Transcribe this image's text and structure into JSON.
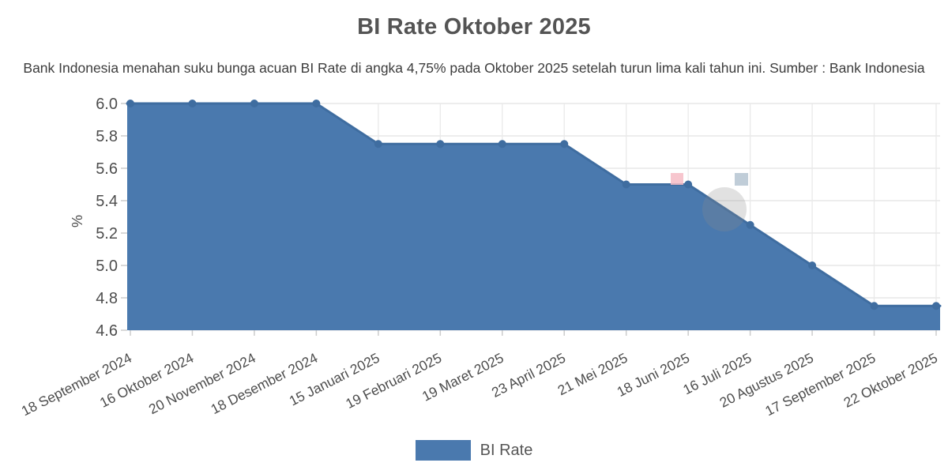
{
  "header": {
    "title": "BI Rate Oktober 2025",
    "subtitle": "Bank Indonesia menahan suku bunga acuan BI Rate di angka 4,75% pada Oktober 2025 setelah turun lima kali tahun ini. Sumber : Bank Indonesia"
  },
  "legend": {
    "label": "BI Rate"
  },
  "chart_data": {
    "type": "area",
    "title": "BI Rate Oktober 2025",
    "subtitle": "Bank Indonesia menahan suku bunga acuan BI Rate di angka 4,75% pada Oktober 2025 setelah turun lima kali tahun ini. Sumber : Bank Indonesia",
    "categories": [
      "18 September 2024",
      "16 Oktober 2024",
      "20 November 2024",
      "18 Desember 2024",
      "15 Januari 2025",
      "19 Februari 2025",
      "19 Maret 2025",
      "23 April 2025",
      "21 Mei 2025",
      "18 Juni 2025",
      "16 Juli 2025",
      "20 Agustus 2025",
      "17 September 2025",
      "22 Oktober 2025"
    ],
    "series": [
      {
        "name": "BI Rate",
        "values": [
          6.0,
          6.0,
          6.0,
          6.0,
          5.75,
          5.75,
          5.75,
          5.75,
          5.5,
          5.5,
          5.25,
          5.0,
          4.75,
          4.75
        ]
      }
    ],
    "xlabel": "",
    "ylabel": "%",
    "ylim": [
      4.6,
      6.0
    ],
    "ytick_step": 0.2,
    "yticks": [
      "6.0",
      "5.8",
      "5.6",
      "5.4",
      "5.2",
      "5.0",
      "4.8",
      "4.6"
    ],
    "grid": true,
    "legend_position": "bottom",
    "colors": {
      "area": "#4a79ae",
      "line": "#3f6da0",
      "marker": "#3f6da0",
      "grid_h": "#e2e2e2",
      "grid_v": "#e9e9e9",
      "tick": "#cccccc",
      "axis_text": "#4d4d4d",
      "watermark_pink": "#f6bcc6",
      "watermark_blue": "#b9c8d4",
      "watermark_circle": "#8a8a8a"
    }
  }
}
